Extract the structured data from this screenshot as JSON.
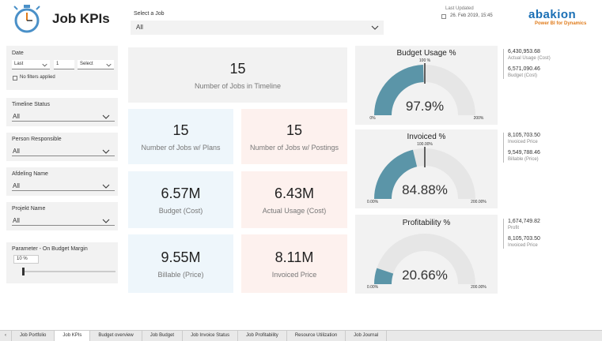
{
  "header": {
    "title": "Job KPIs",
    "select_job_label": "Select a Job",
    "select_job_value": "All",
    "last_updated_label": "Last Updated",
    "last_updated_value": "26. Feb 2019, 15:45"
  },
  "brand": {
    "name": "abakion",
    "tagline": "Power BI for Dynamics",
    "color": "#1a6fb5",
    "tagline_color": "#e07b1a"
  },
  "filters": {
    "date": {
      "label": "Date",
      "period": "Last",
      "count": "1",
      "unit": "Select",
      "no_filters": "No filters applied"
    },
    "timeline_status": {
      "label": "Timeline Status",
      "value": "All"
    },
    "person_responsible": {
      "label": "Person Responsible",
      "value": "All"
    },
    "afdeling_name": {
      "label": "Afdeling Name",
      "value": "All"
    },
    "projekt_name": {
      "label": "Projekt Name",
      "value": "All"
    },
    "parameter": {
      "label": "Parameter - On Budget Margin",
      "value": "10 %",
      "slider_fraction": 0.1
    }
  },
  "kpis": {
    "timeline": {
      "value": "15",
      "caption": "Number of Jobs in Timeline"
    },
    "plans": {
      "value": "15",
      "caption": "Number of Jobs w/ Plans"
    },
    "postings": {
      "value": "15",
      "caption": "Number of Jobs w/ Postings"
    },
    "budget_cost": {
      "value": "6.57M",
      "caption": "Budget (Cost)"
    },
    "actual_usage": {
      "value": "6.43M",
      "caption": "Actual Usage (Cost)"
    },
    "billable": {
      "value": "9.55M",
      "caption": "Billable (Price)"
    },
    "invoiced": {
      "value": "8.11M",
      "caption": "Invoiced Price"
    }
  },
  "gauges": [
    {
      "title": "Budget Usage %",
      "value_text": "97.9%",
      "fraction": 0.4895,
      "target_fraction": 0.5,
      "target_label": "100 %",
      "min_label": "0%",
      "max_label": "200%",
      "side": [
        {
          "value": "6,430,953.68",
          "label": "Actual Usage (Cost)"
        },
        {
          "value": "6,571,090.46",
          "label": "Budget (Cost)"
        }
      ]
    },
    {
      "title": "Invoiced %",
      "value_text": "84.88%",
      "fraction": 0.4244,
      "target_fraction": 0.5,
      "target_label": "100.00%",
      "min_label": "0.00%",
      "max_label": "200.00%",
      "side": [
        {
          "value": "8,105,703.50",
          "label": "Invoiced Price"
        },
        {
          "value": "9,549,788.46",
          "label": "Billable (Price)"
        }
      ]
    },
    {
      "title": "Profitability %",
      "value_text": "20.66%",
      "fraction": 0.1033,
      "target_fraction": null,
      "target_label": "",
      "min_label": "0.00%",
      "max_label": "200.00%",
      "side": [
        {
          "value": "1,674,749.82",
          "label": "Profit"
        },
        {
          "value": "8,105,703.50",
          "label": "Invoiced Price"
        }
      ]
    }
  ],
  "colors": {
    "gauge_fill": "#5b95a8",
    "gauge_bg": "#e6e6e6",
    "blue_card": "#eef6fb",
    "pink_card": "#fdf1ee",
    "grey_card": "#f2f2f2"
  },
  "tabs": [
    "Job Portfolio",
    "Job KPIs",
    "Budget overview",
    "Job Budget",
    "Job Invoice Status",
    "Job Profitability",
    "Resource Utilization",
    "Job Journal"
  ],
  "active_tab": "Job KPIs"
}
